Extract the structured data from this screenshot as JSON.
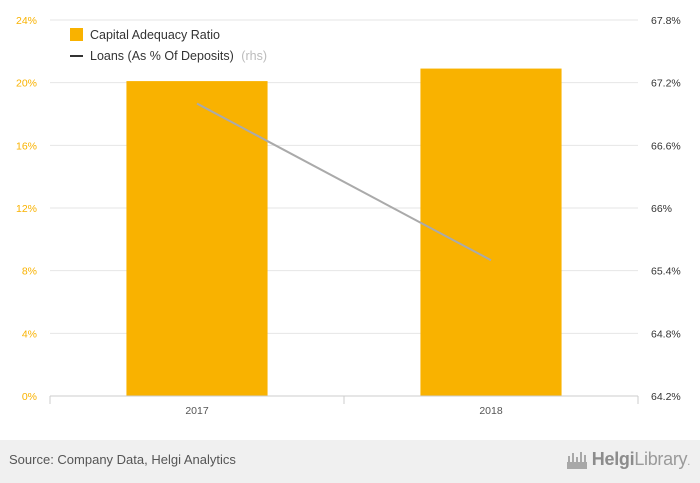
{
  "chart_data": {
    "type": "bar",
    "categories": [
      "2017",
      "2018"
    ],
    "series": [
      {
        "name": "Capital Adequacy Ratio",
        "type": "bar",
        "axis": "left",
        "values": [
          20.1,
          20.9
        ],
        "color": "#f9b200"
      },
      {
        "name": "Loans (As % Of Deposits)",
        "name_suffix": "(rhs)",
        "type": "line",
        "axis": "right",
        "values": [
          67.0,
          65.5
        ],
        "color": "#aaaaaa"
      }
    ],
    "y_left": {
      "min": 0,
      "max": 24,
      "ticks": [
        "0%",
        "4%",
        "8%",
        "12%",
        "16%",
        "20%",
        "24%"
      ],
      "tick_values": [
        0,
        4,
        8,
        12,
        16,
        20,
        24
      ],
      "color": "#f9b200"
    },
    "y_right": {
      "min": 64.2,
      "max": 67.8,
      "ticks": [
        "64.2%",
        "64.8%",
        "65.4%",
        "66%",
        "66.6%",
        "67.2%",
        "67.8%"
      ],
      "tick_values": [
        64.2,
        64.8,
        65.4,
        66.0,
        66.6,
        67.2,
        67.8
      ],
      "color": "#333333"
    },
    "grid": true,
    "legend": "top-left"
  },
  "footer": {
    "source": "Source: Company Data, Helgi Analytics",
    "brand_name": "Helgi",
    "brand_suffix": "Library",
    "brand_dot": "."
  },
  "icons": {
    "brand": "helgi-library-logo-icon"
  }
}
